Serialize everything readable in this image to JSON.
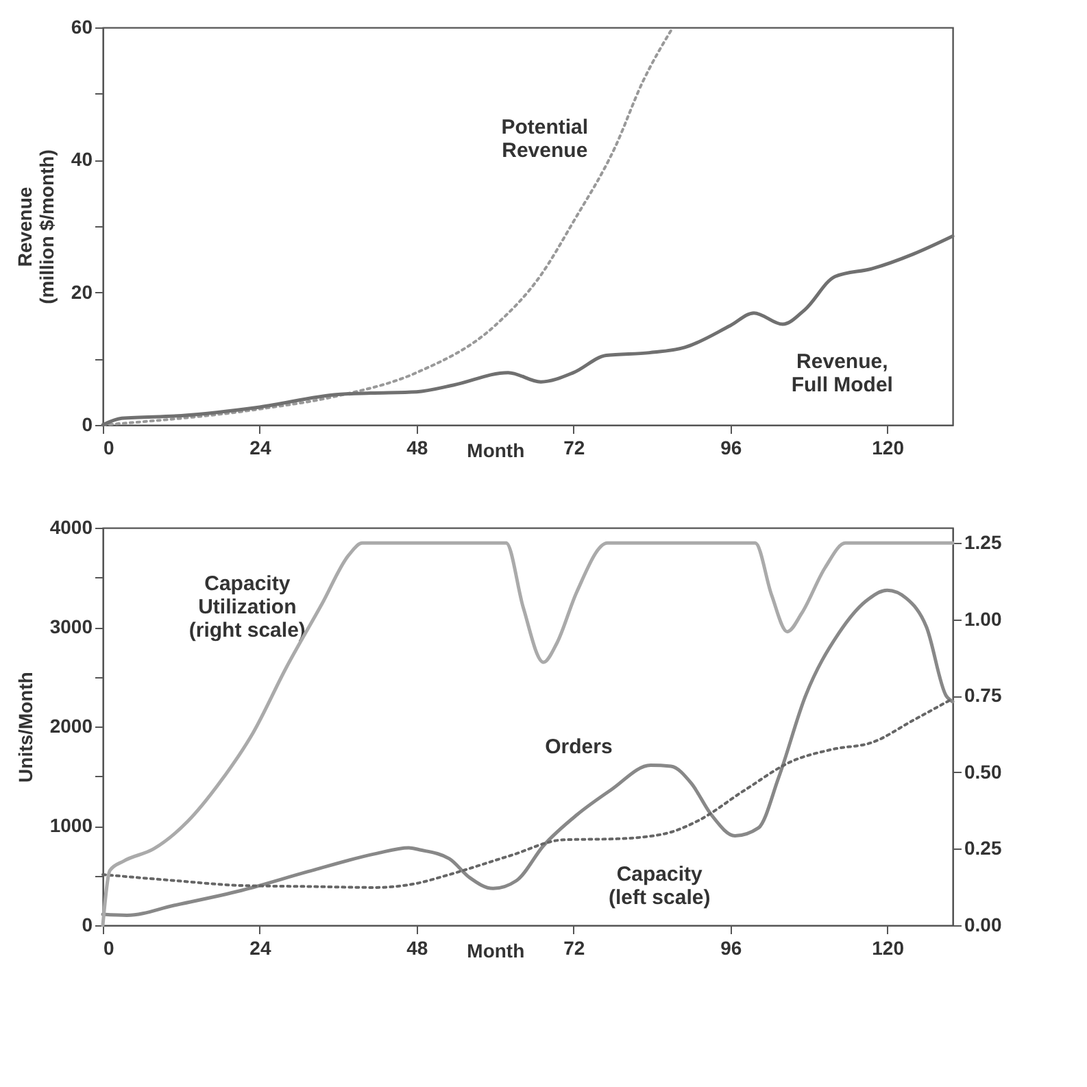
{
  "chart_data": [
    {
      "type": "line",
      "xlabel": "Month",
      "ylabel": "Revenue\n(million $/month)",
      "xlim": [
        0,
        130
      ],
      "xticks": [
        0,
        24,
        48,
        72,
        96,
        120
      ],
      "ylim": [
        0,
        60
      ],
      "yticks": [
        0,
        {
          "value": 10,
          "label": null
        },
        20,
        {
          "value": 30,
          "label": null
        },
        40,
        {
          "value": 50,
          "label": null
        },
        60
      ],
      "grid": false,
      "legend": false,
      "series": [
        {
          "name": "Potential\nRevenue",
          "color": "#999999",
          "line_style": "dotted",
          "x": [
            0,
            24,
            36,
            48,
            60,
            67,
            72,
            78.4,
            82.5,
            87.2
          ],
          "values": [
            0,
            2.4,
            4.4,
            7.9,
            15,
            22.6,
            30.7,
            42,
            51.6,
            60
          ]
        },
        {
          "name": "Revenue,\nFull Model",
          "color": "#707070",
          "line_style": "solid",
          "x": [
            0,
            2.9,
            12,
            24,
            36,
            41,
            48,
            53.6,
            62,
            67,
            72,
            77,
            83.6,
            89,
            96,
            99.6,
            104,
            107.4,
            112,
            117.7,
            124,
            130
          ],
          "values": [
            0,
            1.0,
            1.4,
            2.7,
            4.6,
            4.8,
            5.0,
            6.0,
            7.9,
            6.5,
            7.9,
            10.5,
            10.9,
            11.7,
            15.0,
            16.9,
            15.2,
            17.4,
            22.4,
            23.6,
            25.8,
            28.5
          ]
        }
      ]
    },
    {
      "type": "line",
      "xlabel": "Month",
      "ylabel": "Units/Month",
      "xlim": [
        0,
        130
      ],
      "xticks": [
        0,
        24,
        48,
        72,
        96,
        120
      ],
      "ylim": [
        0,
        4000
      ],
      "yticks": [
        0,
        {
          "value": 500,
          "label": null
        },
        1000,
        {
          "value": 1500,
          "label": null
        },
        2000,
        {
          "value": 2500,
          "label": null
        },
        3000,
        {
          "value": 3500,
          "label": null
        },
        4000
      ],
      "y2lim": [
        0,
        1.3
      ],
      "y2ticks": [
        {
          "value": 0,
          "label": "0.00"
        },
        0.25,
        {
          "value": 0.5,
          "label": "0.50"
        },
        0.75,
        {
          "value": 1,
          "label": "1.00"
        },
        1.25
      ],
      "grid": false,
      "legend": false,
      "series": [
        {
          "name": "Capacity\nUtilization\n(right scale)",
          "color": "#aaaaaa",
          "line_style": "solid",
          "axis": "y2",
          "x": [
            0,
            1.1,
            3.2,
            7.8,
            13,
            18,
            23,
            28,
            33.5,
            37.6,
            39.7,
            61.7,
            64.3,
            67.4,
            69.4,
            72.5,
            77.2,
            99.8,
            102.3,
            104.7,
            106.9,
            110.5,
            113.6,
            130
          ],
          "values": [
            0,
            0.18,
            0.21,
            0.25,
            0.34,
            0.47,
            0.63,
            0.84,
            1.05,
            1.21,
            1.25,
            1.25,
            1.04,
            0.86,
            0.92,
            1.09,
            1.25,
            1.25,
            1.08,
            0.96,
            1.02,
            1.17,
            1.25,
            1.25
          ]
        },
        {
          "name": "Orders",
          "color": "#888888",
          "line_style": "solid",
          "x": [
            0,
            3.7,
            10.9,
            21.2,
            31.4,
            41.7,
            46.8,
            48.4,
            53,
            56.1,
            59.7,
            63.3,
            67.4,
            72.5,
            77.7,
            83.8,
            86.9,
            90,
            93.1,
            96.7,
            100.3,
            103.4,
            107.5,
            112.6,
            116.7,
            120,
            122.9,
            126,
            129,
            130
          ],
          "values": [
            110,
            100,
            200,
            350,
            540,
            720,
            780,
            760,
            670,
            480,
            370,
            450,
            800,
            1110,
            1360,
            1610,
            1600,
            1430,
            1110,
            900,
            980,
            1490,
            2310,
            2940,
            3260,
            3370,
            3290,
            3000,
            2310,
            2250
          ]
        },
        {
          "name": "Capacity\n(left scale)",
          "color": "#666666",
          "line_style": "dotted",
          "x": [
            0,
            10.9,
            21.2,
            31.4,
            41.7,
            47.9,
            53,
            62.3,
            70.5,
            78.7,
            85.9,
            91,
            98.2,
            105.4,
            111.6,
            117.7,
            123.9,
            130
          ],
          "values": [
            510,
            450,
            400,
            390,
            380,
            420,
            510,
            700,
            860,
            870,
            920,
            1050,
            1360,
            1650,
            1770,
            1840,
            2060,
            2280
          ]
        }
      ]
    }
  ]
}
